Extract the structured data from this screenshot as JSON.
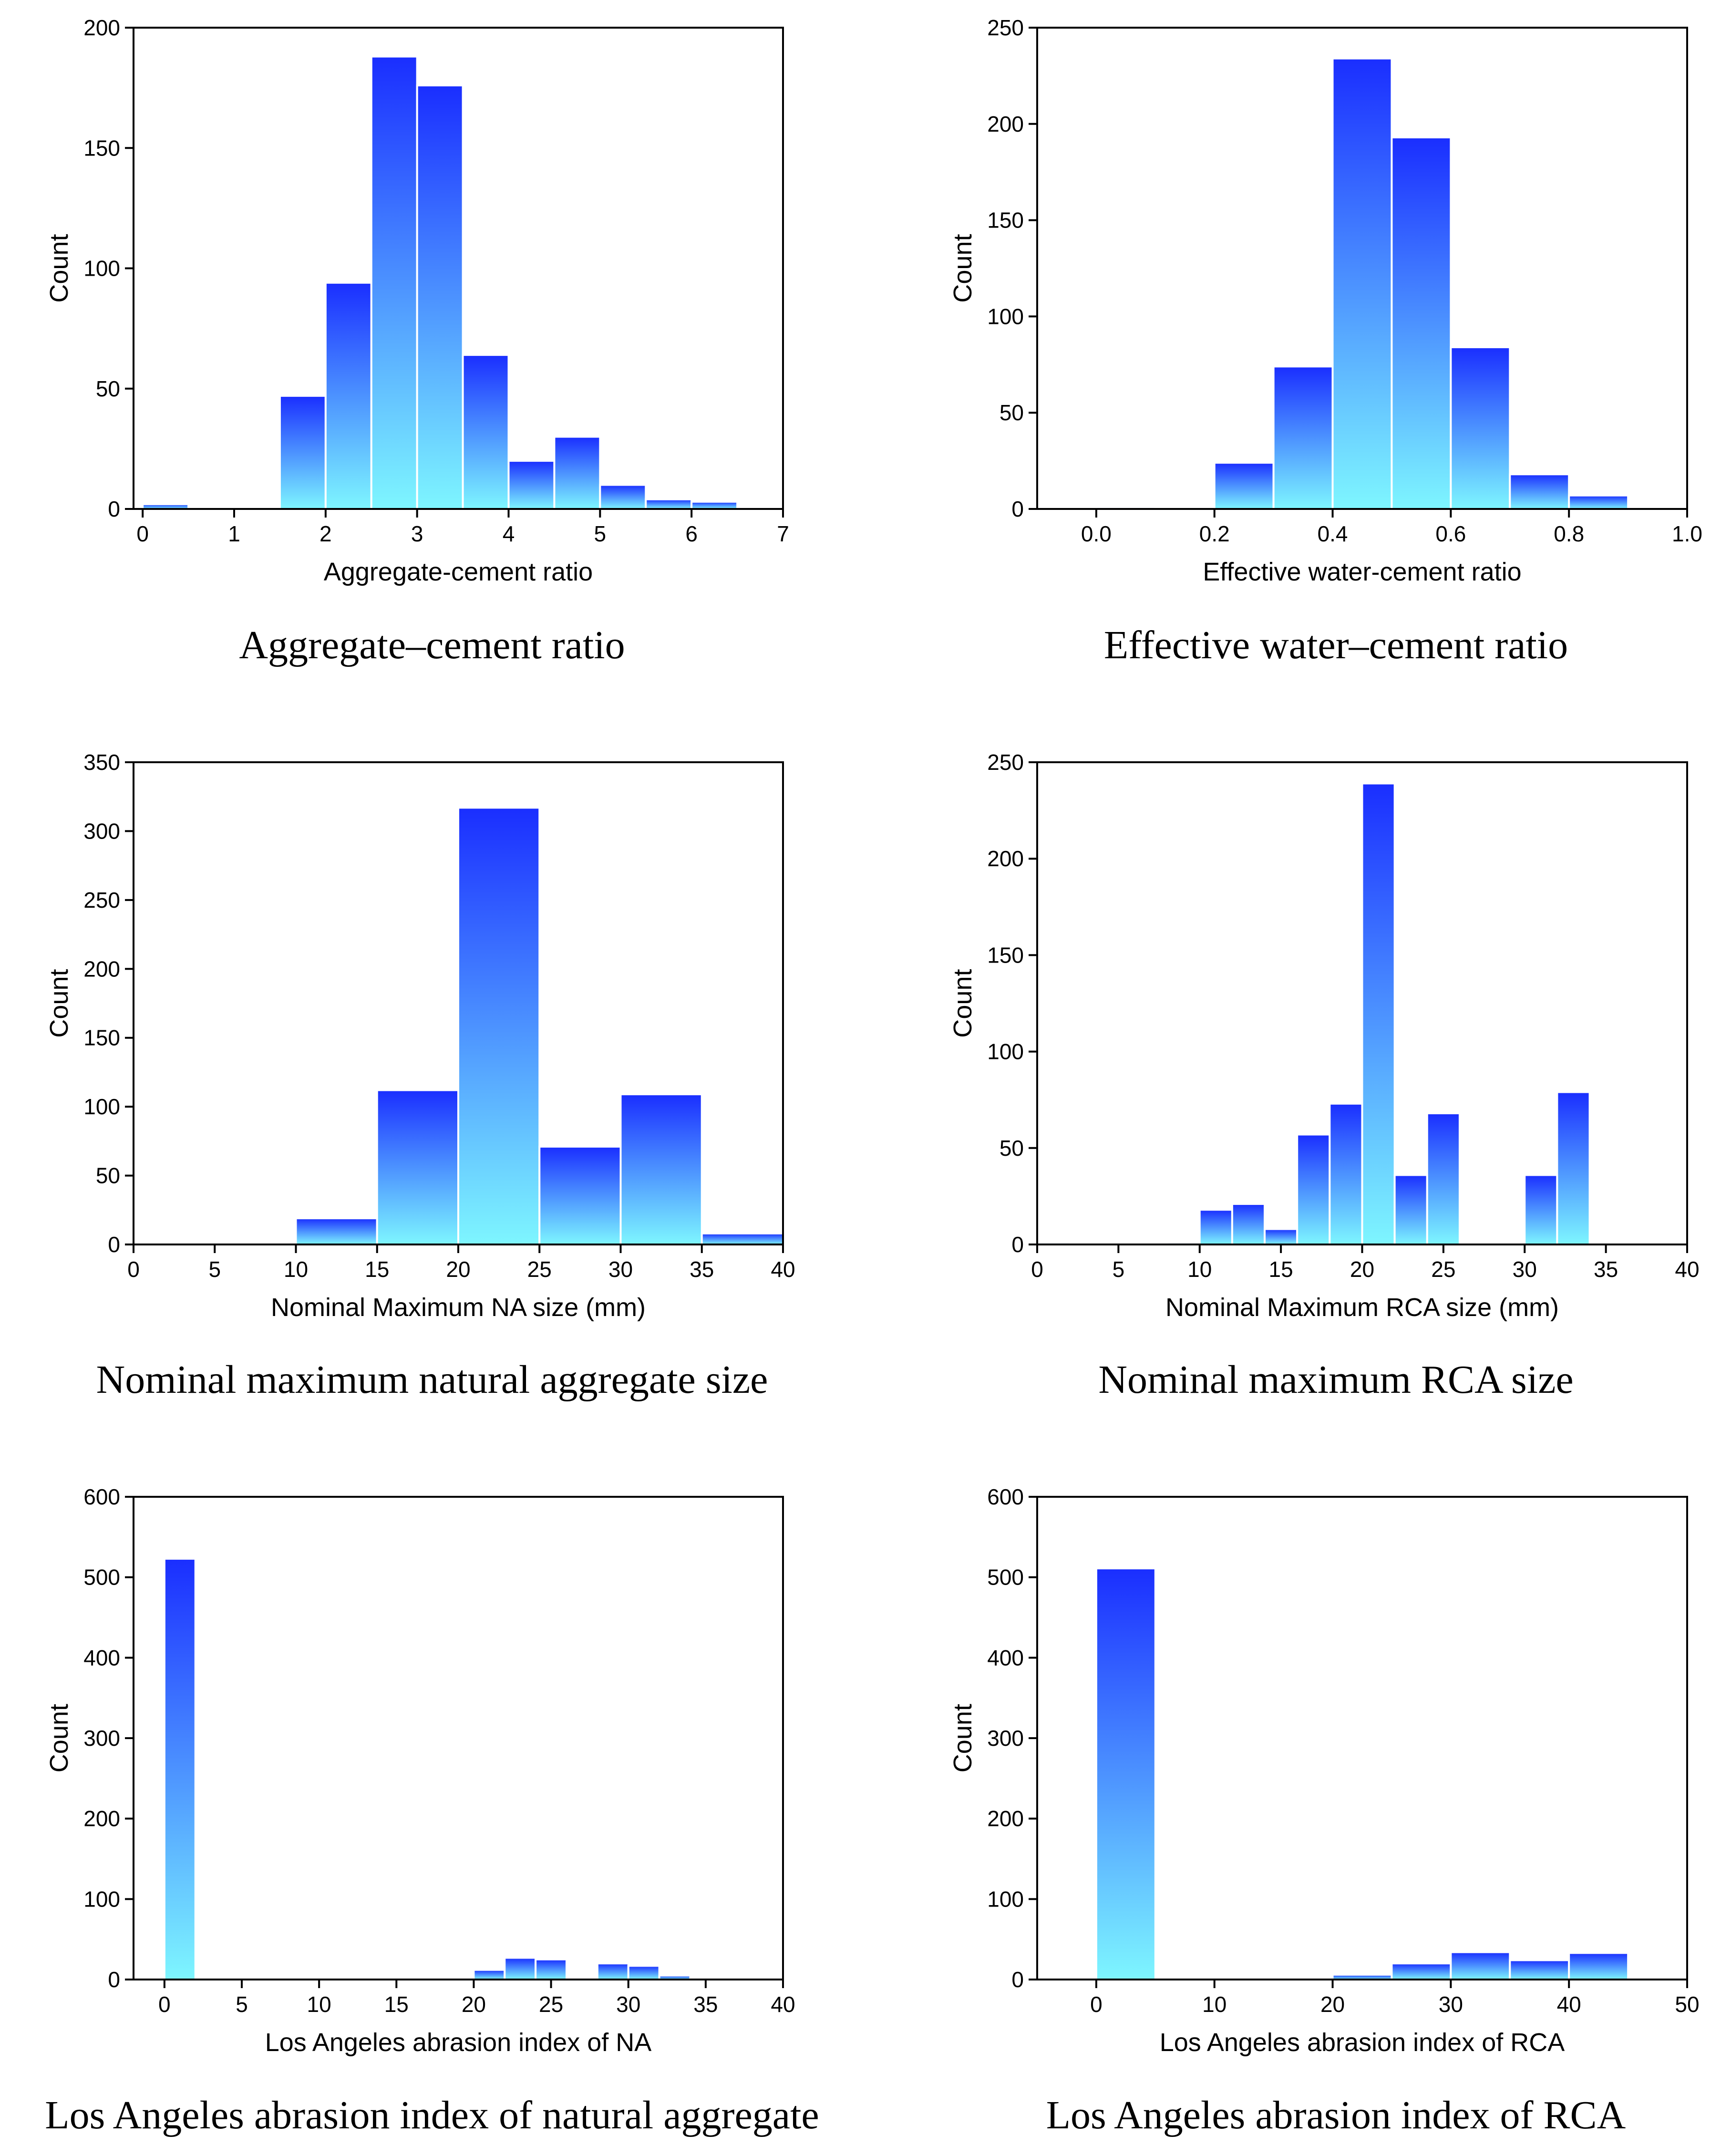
{
  "gradient": {
    "top": "#1a2eff",
    "bottom": "#7ef6ff"
  },
  "chart_data": [
    {
      "type": "bar",
      "caption": "Aggregate–cement ratio",
      "xlabel": "Aggregate-cement ratio",
      "ylabel": "Count",
      "xlim": [
        -0.1,
        7
      ],
      "ylim": [
        0,
        200
      ],
      "xticks": [
        0,
        1,
        2,
        3,
        4,
        5,
        6,
        7
      ],
      "xtick_labels": [
        "0",
        "1",
        "2",
        "3",
        "4",
        "5",
        "6",
        "7"
      ],
      "yticks": [
        0,
        50,
        100,
        150,
        200
      ],
      "ytick_labels": [
        "0",
        "50",
        "100",
        "150",
        "200"
      ],
      "bins": [
        {
          "x0": 0.0,
          "x1": 0.5,
          "count": 2
        },
        {
          "x0": 1.5,
          "x1": 2.0,
          "count": 47
        },
        {
          "x0": 2.0,
          "x1": 2.5,
          "count": 94
        },
        {
          "x0": 2.5,
          "x1": 3.0,
          "count": 188
        },
        {
          "x0": 3.0,
          "x1": 3.5,
          "count": 176
        },
        {
          "x0": 3.5,
          "x1": 4.0,
          "count": 64
        },
        {
          "x0": 4.0,
          "x1": 4.5,
          "count": 20
        },
        {
          "x0": 4.5,
          "x1": 5.0,
          "count": 30
        },
        {
          "x0": 5.0,
          "x1": 5.5,
          "count": 10
        },
        {
          "x0": 5.5,
          "x1": 6.0,
          "count": 4
        },
        {
          "x0": 6.0,
          "x1": 6.5,
          "count": 3
        }
      ]
    },
    {
      "type": "bar",
      "caption": "Effective water–cement ratio",
      "xlabel": "Effective water-cement ratio",
      "ylabel": "Count",
      "xlim": [
        -0.1,
        1.0
      ],
      "ylim": [
        0,
        250
      ],
      "xticks": [
        0.0,
        0.2,
        0.4,
        0.6,
        0.8,
        1.0
      ],
      "xtick_labels": [
        "0.0",
        "0.2",
        "0.4",
        "0.6",
        "0.8",
        "1.0"
      ],
      "yticks": [
        0,
        50,
        100,
        150,
        200,
        250
      ],
      "ytick_labels": [
        "0",
        "50",
        "100",
        "150",
        "200",
        "250"
      ],
      "bins": [
        {
          "x0": 0.0,
          "x1": 0.1,
          "count": 1
        },
        {
          "x0": 0.2,
          "x1": 0.3,
          "count": 24
        },
        {
          "x0": 0.3,
          "x1": 0.4,
          "count": 74
        },
        {
          "x0": 0.4,
          "x1": 0.5,
          "count": 234
        },
        {
          "x0": 0.5,
          "x1": 0.6,
          "count": 193
        },
        {
          "x0": 0.6,
          "x1": 0.7,
          "count": 84
        },
        {
          "x0": 0.7,
          "x1": 0.8,
          "count": 18
        },
        {
          "x0": 0.8,
          "x1": 0.9,
          "count": 7
        }
      ]
    },
    {
      "type": "bar",
      "caption": "Nominal maximum natural aggregate size",
      "xlabel": "Nominal Maximum NA size (mm)",
      "ylabel": "Count",
      "xlim": [
        0,
        40
      ],
      "ylim": [
        0,
        350
      ],
      "xticks": [
        0,
        5,
        10,
        15,
        20,
        25,
        30,
        35,
        40
      ],
      "xtick_labels": [
        "0",
        "5",
        "10",
        "15",
        "20",
        "25",
        "30",
        "35",
        "40"
      ],
      "yticks": [
        0,
        50,
        100,
        150,
        200,
        250,
        300,
        350
      ],
      "ytick_labels": [
        "0",
        "50",
        "100",
        "150",
        "200",
        "250",
        "300",
        "350"
      ],
      "bins": [
        {
          "x0": 0,
          "x1": 5,
          "count": 1
        },
        {
          "x0": 10,
          "x1": 15,
          "count": 19
        },
        {
          "x0": 15,
          "x1": 20,
          "count": 112
        },
        {
          "x0": 20,
          "x1": 25,
          "count": 317
        },
        {
          "x0": 25,
          "x1": 30,
          "count": 71
        },
        {
          "x0": 30,
          "x1": 35,
          "count": 109
        },
        {
          "x0": 35,
          "x1": 40,
          "count": 8
        }
      ]
    },
    {
      "type": "bar",
      "caption": "Nominal maximum RCA size",
      "xlabel": "Nominal Maximum RCA size (mm)",
      "ylabel": "Count",
      "xlim": [
        0,
        40
      ],
      "ylim": [
        0,
        250
      ],
      "xticks": [
        0,
        5,
        10,
        15,
        20,
        25,
        30,
        35,
        40
      ],
      "xtick_labels": [
        "0",
        "5",
        "10",
        "15",
        "20",
        "25",
        "30",
        "35",
        "40"
      ],
      "yticks": [
        0,
        50,
        100,
        150,
        200,
        250
      ],
      "ytick_labels": [
        "0",
        "50",
        "100",
        "150",
        "200",
        "250"
      ],
      "bins": [
        {
          "x0": 0,
          "x1": 2,
          "count": 1
        },
        {
          "x0": 8,
          "x1": 10,
          "count": 1
        },
        {
          "x0": 10,
          "x1": 12,
          "count": 18
        },
        {
          "x0": 12,
          "x1": 14,
          "count": 21
        },
        {
          "x0": 14,
          "x1": 16,
          "count": 8
        },
        {
          "x0": 16,
          "x1": 18,
          "count": 57
        },
        {
          "x0": 18,
          "x1": 20,
          "count": 73
        },
        {
          "x0": 20,
          "x1": 22,
          "count": 239
        },
        {
          "x0": 22,
          "x1": 24,
          "count": 36
        },
        {
          "x0": 24,
          "x1": 26,
          "count": 68
        },
        {
          "x0": 30,
          "x1": 32,
          "count": 36
        },
        {
          "x0": 32,
          "x1": 34,
          "count": 79
        }
      ]
    },
    {
      "type": "bar",
      "caption": "Los Angeles abrasion index of natural aggregate",
      "xlabel": "Los Angeles abrasion index of NA",
      "ylabel": "Count",
      "xlim": [
        -2,
        40
      ],
      "ylim": [
        0,
        600
      ],
      "xticks": [
        0,
        5,
        10,
        15,
        20,
        25,
        30,
        35,
        40
      ],
      "xtick_labels": [
        "0",
        "5",
        "10",
        "15",
        "20",
        "25",
        "30",
        "35",
        "40"
      ],
      "yticks": [
        0,
        100,
        200,
        300,
        400,
        500,
        600
      ],
      "ytick_labels": [
        "0",
        "100",
        "200",
        "300",
        "400",
        "500",
        "600"
      ],
      "bins": [
        {
          "x0": 0,
          "x1": 2,
          "count": 523
        },
        {
          "x0": 20,
          "x1": 22,
          "count": 12
        },
        {
          "x0": 22,
          "x1": 24,
          "count": 27
        },
        {
          "x0": 24,
          "x1": 26,
          "count": 25
        },
        {
          "x0": 28,
          "x1": 30,
          "count": 20
        },
        {
          "x0": 30,
          "x1": 32,
          "count": 17
        },
        {
          "x0": 32,
          "x1": 34,
          "count": 5
        }
      ]
    },
    {
      "type": "bar",
      "caption": "Los Angeles abrasion index of RCA",
      "xlabel": "Los Angeles abrasion index of RCA",
      "ylabel": "Count",
      "xlim": [
        -5,
        50
      ],
      "ylim": [
        0,
        600
      ],
      "xticks": [
        0,
        10,
        20,
        30,
        40,
        50
      ],
      "xtick_labels": [
        "0",
        "10",
        "20",
        "30",
        "40",
        "50"
      ],
      "yticks": [
        0,
        100,
        200,
        300,
        400,
        500,
        600
      ],
      "ytick_labels": [
        "0",
        "100",
        "200",
        "300",
        "400",
        "500",
        "600"
      ],
      "bins": [
        {
          "x0": 0,
          "x1": 5,
          "count": 511
        },
        {
          "x0": 20,
          "x1": 25,
          "count": 6
        },
        {
          "x0": 25,
          "x1": 30,
          "count": 20
        },
        {
          "x0": 30,
          "x1": 35,
          "count": 34
        },
        {
          "x0": 35,
          "x1": 40,
          "count": 24
        },
        {
          "x0": 40,
          "x1": 45,
          "count": 33
        }
      ]
    }
  ]
}
